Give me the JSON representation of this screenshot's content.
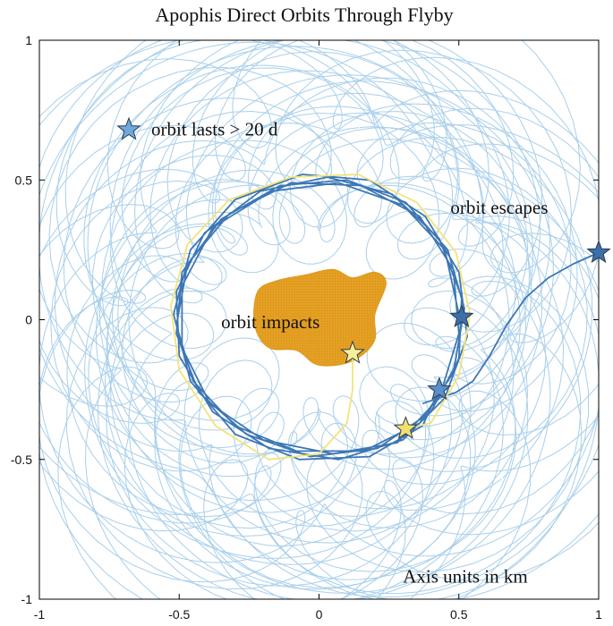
{
  "chart_data": {
    "type": "line",
    "title": "Apophis Direct Orbits Through Flyby",
    "xlabel": "",
    "ylabel": "",
    "xlim": [
      -1,
      1
    ],
    "ylim": [
      -1,
      1
    ],
    "x_ticks": [
      "-1",
      "-0.5",
      "0",
      "0.5",
      "1"
    ],
    "y_ticks": [
      "1",
      "0.5",
      "0",
      "-0.5",
      "-1"
    ],
    "grid": false,
    "asteroid": {
      "color": "#E09A1C",
      "outline": [
        [
          -0.22,
          0.1
        ],
        [
          -0.15,
          0.14
        ],
        [
          -0.05,
          0.16
        ],
        [
          0.05,
          0.18
        ],
        [
          0.12,
          0.15
        ],
        [
          0.2,
          0.17
        ],
        [
          0.24,
          0.13
        ],
        [
          0.2,
          0.02
        ],
        [
          0.2,
          -0.07
        ],
        [
          0.15,
          -0.13
        ],
        [
          0.08,
          -0.16
        ],
        [
          -0.01,
          -0.16
        ],
        [
          -0.08,
          -0.11
        ],
        [
          -0.18,
          -0.1
        ],
        [
          -0.23,
          -0.02
        ]
      ]
    },
    "series": [
      {
        "color": "#3D77B4",
        "points": [
          [
            0.5,
            0.02
          ],
          [
            0.45,
            0.25
          ],
          [
            0.3,
            0.41
          ],
          [
            0.07,
            0.49
          ],
          [
            -0.17,
            0.46
          ],
          [
            -0.38,
            0.33
          ],
          [
            -0.49,
            0.12
          ],
          [
            -0.49,
            -0.1
          ],
          [
            -0.39,
            -0.3
          ],
          [
            -0.2,
            -0.43
          ],
          [
            0.05,
            -0.48
          ],
          [
            0.28,
            -0.44
          ],
          [
            0.43,
            -0.28
          ],
          [
            0.5,
            -0.05
          ],
          [
            0.48,
            0.18
          ],
          [
            0.36,
            0.37
          ],
          [
            0.15,
            0.48
          ],
          [
            -0.1,
            0.49
          ],
          [
            -0.32,
            0.38
          ],
          [
            -0.47,
            0.2
          ],
          [
            -0.51,
            -0.02
          ],
          [
            -0.45,
            -0.22
          ],
          [
            -0.3,
            -0.38
          ],
          [
            -0.08,
            -0.47
          ],
          [
            0.16,
            -0.47
          ],
          [
            0.36,
            -0.37
          ],
          [
            0.48,
            -0.19
          ],
          [
            0.52,
            0.04
          ],
          [
            0.46,
            0.25
          ],
          [
            0.31,
            0.42
          ],
          [
            0.1,
            0.5
          ],
          [
            -0.14,
            0.48
          ],
          [
            -0.35,
            0.36
          ],
          [
            -0.49,
            0.17
          ],
          [
            -0.51,
            -0.05
          ],
          [
            -0.43,
            -0.26
          ],
          [
            -0.26,
            -0.41
          ],
          [
            -0.03,
            -0.49
          ],
          [
            0.21,
            -0.46
          ],
          [
            0.4,
            -0.33
          ],
          [
            0.5,
            -0.14
          ],
          [
            0.51,
            0.08
          ],
          [
            0.43,
            0.29
          ],
          [
            0.26,
            0.45
          ],
          [
            0.03,
            0.51
          ],
          [
            -0.21,
            0.46
          ],
          [
            -0.41,
            0.31
          ],
          [
            -0.51,
            0.1
          ],
          [
            -0.5,
            -0.13
          ],
          [
            -0.38,
            -0.33
          ],
          [
            -0.18,
            -0.46
          ],
          [
            0.07,
            -0.5
          ],
          [
            0.3,
            -0.43
          ],
          [
            0.45,
            -0.28
          ],
          [
            0.53,
            -0.06
          ],
          [
            0.5,
            0.17
          ],
          [
            0.38,
            0.37
          ],
          [
            0.18,
            0.5
          ],
          [
            -0.06,
            0.52
          ],
          [
            -0.3,
            0.43
          ],
          [
            -0.46,
            0.25
          ],
          [
            -0.52,
            0.02
          ],
          [
            -0.46,
            -0.22
          ],
          [
            -0.3,
            -0.41
          ],
          [
            -0.07,
            -0.5
          ],
          [
            0.18,
            -0.49
          ],
          [
            0.37,
            -0.38
          ],
          [
            0.43,
            -0.25
          ]
        ]
      },
      {
        "color": "#3D77B4",
        "points": [
          [
            0.37,
            -0.3
          ],
          [
            0.43,
            -0.28
          ],
          [
            0.49,
            -0.26
          ],
          [
            0.55,
            -0.22
          ],
          [
            0.61,
            -0.13
          ],
          [
            0.67,
            -0.02
          ],
          [
            0.74,
            0.08
          ],
          [
            0.82,
            0.15
          ],
          [
            0.91,
            0.2
          ],
          [
            1.0,
            0.24
          ]
        ]
      },
      {
        "color": "#F2E37A",
        "points": [
          [
            0.12,
            -0.12
          ],
          [
            0.12,
            -0.25
          ],
          [
            0.1,
            -0.37
          ],
          [
            0.0,
            -0.48
          ],
          [
            -0.18,
            -0.5
          ],
          [
            -0.37,
            -0.38
          ],
          [
            -0.5,
            -0.18
          ],
          [
            -0.53,
            0.05
          ],
          [
            -0.47,
            0.27
          ],
          [
            -0.32,
            0.43
          ],
          [
            -0.1,
            0.51
          ],
          [
            0.14,
            0.52
          ],
          [
            0.35,
            0.42
          ],
          [
            0.49,
            0.24
          ],
          [
            0.54,
            0.02
          ],
          [
            0.5,
            -0.2
          ],
          [
            0.4,
            -0.37
          ],
          [
            0.31,
            -0.39
          ]
        ]
      }
    ],
    "markers": [
      {
        "x": -0.68,
        "y": 0.68,
        "color": "#6FA8DC"
      },
      {
        "x": 1.0,
        "y": 0.24,
        "color": "#3D6FA8"
      },
      {
        "x": 0.51,
        "y": 0.01,
        "color": "#3D6FA8"
      },
      {
        "x": 0.43,
        "y": -0.25,
        "color": "#5B8FCC"
      },
      {
        "x": 0.31,
        "y": -0.39,
        "color": "#F0E070"
      },
      {
        "x": 0.12,
        "y": -0.12,
        "color": "#F7F09A"
      }
    ],
    "annotations": [
      {
        "text": "orbit lasts > 20 d",
        "x": -0.6,
        "y": 0.66
      },
      {
        "text": "orbit escapes",
        "x": 0.47,
        "y": 0.38
      },
      {
        "text": "orbit impacts",
        "x": -0.35,
        "y": -0.03
      },
      {
        "text": "Axis units in km",
        "x": 0.3,
        "y": -0.94
      }
    ],
    "background_loops": {
      "color": "#A9CFEA",
      "count": 34
    }
  }
}
